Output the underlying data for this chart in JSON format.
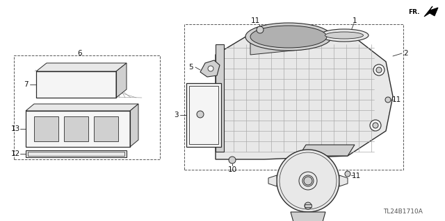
{
  "background_color": "#ffffff",
  "diagram_code": "TL24B1710A",
  "line_color": "#2a2a2a",
  "text_color": "#111111",
  "part_fs": 7.5,
  "dashed_box_color": "#555555",
  "fill_light": "#e8e8e8",
  "fill_mid": "#d0d0d0",
  "fill_dark": "#b0b0b0",
  "fill_white": "#f5f5f5"
}
